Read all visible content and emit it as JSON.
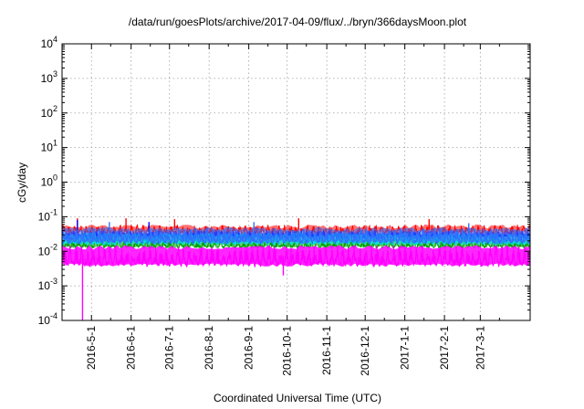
{
  "chart_data": {
    "type": "line",
    "title": "/data/run/goesPlots/archive/2017-04-09/flux/../bryn/366daysMoon.plot",
    "xlabel": "Coordinated Universal Time (UTC)",
    "ylabel": "cGy/day",
    "y_scale": "log",
    "ylim": [
      0.0001,
      10000
    ],
    "xlim": [
      "2016-04-08",
      "2017-04-09"
    ],
    "grid": true,
    "y_ticks": [
      {
        "base": "10",
        "exp": "-4"
      },
      {
        "base": "10",
        "exp": "-3"
      },
      {
        "base": "10",
        "exp": "-2"
      },
      {
        "base": "10",
        "exp": "-1"
      },
      {
        "base": "10",
        "exp": "0"
      },
      {
        "base": "10",
        "exp": "1"
      },
      {
        "base": "10",
        "exp": "2"
      },
      {
        "base": "10",
        "exp": "3"
      },
      {
        "base": "10",
        "exp": "4"
      }
    ],
    "x_ticks": [
      {
        "label": "2016-5-1",
        "date": "2016-05-01"
      },
      {
        "label": "2016-6-1",
        "date": "2016-06-01"
      },
      {
        "label": "2016-7-1",
        "date": "2016-07-01"
      },
      {
        "label": "2016-8-1",
        "date": "2016-08-01"
      },
      {
        "label": "2016-9-1",
        "date": "2016-09-01"
      },
      {
        "label": "2016-10-1",
        "date": "2016-10-01"
      },
      {
        "label": "2016-11-1",
        "date": "2016-11-01"
      },
      {
        "label": "2016-12-1",
        "date": "2016-12-01"
      },
      {
        "label": "2017-1-1",
        "date": "2017-01-01"
      },
      {
        "label": "2017-2-1",
        "date": "2017-02-01"
      },
      {
        "label": "2017-3-1",
        "date": "2017-03-01"
      }
    ],
    "series": [
      {
        "color": "#ff0000",
        "band": [
          0.03,
          0.06
        ],
        "spikes": [
          [
            "2016-04-20",
            0.09
          ],
          [
            "2016-05-28",
            0.09
          ],
          [
            "2016-07-05",
            0.085
          ],
          [
            "2016-10-10",
            0.09
          ],
          [
            "2017-01-20",
            0.085
          ]
        ]
      },
      {
        "color": "#0000ff",
        "band": [
          0.02,
          0.04
        ],
        "spikes": [
          [
            "2016-04-20",
            0.08
          ],
          [
            "2016-06-15",
            0.07
          ]
        ]
      },
      {
        "color": "#00a000",
        "band": [
          0.012,
          0.025
        ],
        "spikes": []
      },
      {
        "color": "#00e0e0",
        "band": [
          0.015,
          0.035
        ],
        "spikes": []
      },
      {
        "color": "#3070ff",
        "band": [
          0.016,
          0.05
        ],
        "spikes": [
          [
            "2016-05-15",
            0.07
          ],
          [
            "2016-09-05",
            0.07
          ],
          [
            "2017-02-20",
            0.065
          ]
        ]
      },
      {
        "color": "#ff00ff",
        "band": [
          0.0035,
          0.015
        ],
        "spikes": [
          [
            "2016-04-24",
            0.0001
          ],
          [
            "2016-09-28",
            0.002
          ]
        ]
      }
    ]
  }
}
